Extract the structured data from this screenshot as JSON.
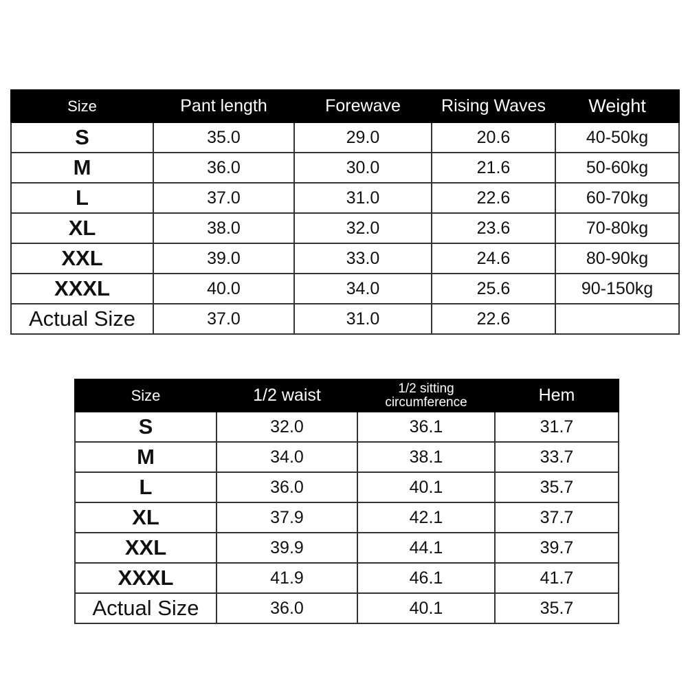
{
  "table1": {
    "headers": [
      "Size",
      "Pant length",
      "Forewave",
      "Rising Waves",
      "Weight"
    ],
    "rows": [
      [
        "S",
        "35.0",
        "29.0",
        "20.6",
        "40-50kg"
      ],
      [
        "M",
        "36.0",
        "30.0",
        "21.6",
        "50-60kg"
      ],
      [
        "L",
        "37.0",
        "31.0",
        "22.6",
        "60-70kg"
      ],
      [
        "XL",
        "38.0",
        "32.0",
        "23.6",
        "70-80kg"
      ],
      [
        "XXL",
        "39.0",
        "33.0",
        "24.6",
        "80-90kg"
      ],
      [
        "XXXL",
        "40.0",
        "34.0",
        "25.6",
        "90-150kg"
      ],
      [
        "Actual Size",
        "37.0",
        "31.0",
        "22.6",
        ""
      ]
    ]
  },
  "table2": {
    "headers": [
      "Size",
      "1/2 waist",
      "1/2 sitting circumference",
      "Hem"
    ],
    "rows": [
      [
        "S",
        "32.0",
        "36.1",
        "31.7"
      ],
      [
        "M",
        "34.0",
        "38.1",
        "33.7"
      ],
      [
        "L",
        "36.0",
        "40.1",
        "35.7"
      ],
      [
        "XL",
        "37.9",
        "42.1",
        "37.7"
      ],
      [
        "XXL",
        "39.9",
        "44.1",
        "39.7"
      ],
      [
        "XXXL",
        "41.9",
        "46.1",
        "41.7"
      ],
      [
        "Actual Size",
        "36.0",
        "40.1",
        "35.7"
      ]
    ]
  },
  "colors": {
    "header_bg": "#000000",
    "header_text": "#ffffff",
    "border": "#333333"
  }
}
